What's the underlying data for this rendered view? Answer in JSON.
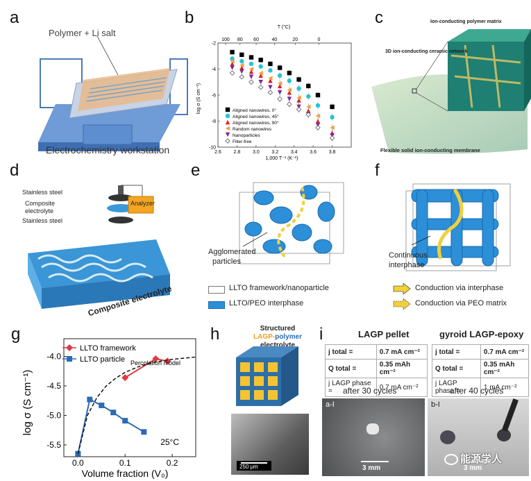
{
  "panels": {
    "a": "a",
    "b": "b",
    "c": "c",
    "d": "d",
    "e": "e",
    "f": "f",
    "g": "g",
    "h": "h",
    "i": "i"
  },
  "panel_a": {
    "polymer_label": "Polymer + Li salt",
    "workstation_label": "Electrochemistry workstation"
  },
  "panel_b": {
    "top_axis_label": "T (°C)",
    "top_ticks": [
      "100",
      "80",
      "60",
      "40",
      "20",
      "0"
    ],
    "ylabel": "log σ (S cm⁻¹)",
    "xlabel": "1,000 T⁻¹ (K⁻¹)",
    "yticks": [
      "-2",
      "-4",
      "-6",
      "-8",
      "-10"
    ],
    "xticks": [
      "2.6",
      "2.8",
      "3.0",
      "3.2",
      "3.4",
      "3.6",
      "3.8"
    ],
    "legend": [
      "Aligned nanowires, 0°",
      "Aligned nanowires, 45°",
      "Aligned nanowires, 90°",
      "Random nanowires",
      "Nanoparticles",
      "Filler-free"
    ]
  },
  "panel_c": {
    "matrix_label": "Ion-conducting polymer matrix",
    "network_label": "3D ion-conducting ceramic network",
    "membrane_label": "Flexible solid ion-conducting membrane"
  },
  "panel_d": {
    "steel_top": "Stainless steel",
    "composite": "Composite",
    "electrolyte": "electrolyte",
    "steel_bottom": "Stainless steel",
    "analyzer": "Analyzer",
    "caption": "Composite electrolyte"
  },
  "panel_e": {
    "label1": "Agglomerated",
    "label2": "particles"
  },
  "panel_f": {
    "label1": "Continuous",
    "label2": "interphase"
  },
  "legend_ef": {
    "framework": "LLTO framework/nanoparticle",
    "interphase": "LLTO/PEO interphase",
    "via_interphase": "Conduction via interphase",
    "via_peo": "Conduction via PEO matrix"
  },
  "panel_g": {
    "ylabel": "log σ (S cm⁻¹)",
    "xlabel": "Volume fraction (V₀)",
    "legend_framework": "LLTO framework",
    "legend_particle": "LLTO particle",
    "percolation": "Percolation model",
    "temp": "25°C",
    "yticks": [
      "-4.0",
      "-4.5",
      "-5.0",
      "-5.5"
    ],
    "xticks": [
      "0.0",
      "0.1",
      "0.2"
    ]
  },
  "panel_h": {
    "title_line1": "Structured",
    "title_lagp": "LAGP-",
    "title_polymer": "polymer",
    "title_rest": " electrolyte",
    "scale": "250 μm"
  },
  "panel_i": {
    "left_title": "LAGP pellet",
    "right_title": "gyroid LAGP-epoxy",
    "row_labels": [
      "j total =",
      "Q total =",
      "j LAGP phase ="
    ],
    "left_values": [
      "0.7 mA cm⁻²",
      "0.35 mAh cm⁻²",
      "0.7 mA cm⁻²"
    ],
    "right_values": [
      "0.7 mA cm⁻²",
      "0.35 mAh cm⁻²",
      "1 mA cm⁻²"
    ],
    "left_cycles": "after 30 cycles",
    "right_cycles": "after 40 cycles",
    "left_photo": "a-I",
    "right_photo": "b-I",
    "scale": "3 mm"
  },
  "watermark": "能源学人",
  "chart_data": [
    {
      "type": "scatter",
      "title": "",
      "xlabel": "1,000 T⁻¹ (K⁻¹)",
      "ylabel": "log σ (S cm⁻¹)",
      "xlim": [
        2.6,
        4.0
      ],
      "ylim": [
        -10,
        -2
      ],
      "x": [
        2.75,
        2.85,
        2.95,
        3.05,
        3.15,
        3.25,
        3.35,
        3.45,
        3.55,
        3.65,
        3.8
      ],
      "series": [
        {
          "name": "Aligned nanowires, 0°",
          "color": "#000000",
          "values": [
            -2.7,
            -2.9,
            -3.1,
            -3.3,
            -3.6,
            -3.9,
            -4.3,
            -4.8,
            -5.3,
            -6.0,
            -6.9
          ]
        },
        {
          "name": "Aligned nanowires, 45°",
          "color": "#22c5d6",
          "values": [
            -3.2,
            -3.4,
            -3.6,
            -3.8,
            -4.1,
            -4.5,
            -4.9,
            -5.5,
            -6.1,
            -6.8,
            -7.7
          ]
        },
        {
          "name": "Aligned nanowires, 90°",
          "color": "#e02020",
          "values": [
            -3.6,
            -3.9,
            -4.2,
            -4.5,
            -4.9,
            -5.3,
            -5.8,
            -6.4,
            -7.2,
            -8.0,
            -8.9
          ]
        },
        {
          "name": "Random nanowires",
          "color": "#f2a23a",
          "values": [
            -3.4,
            -3.7,
            -4.0,
            -4.3,
            -4.7,
            -5.1,
            -5.6,
            -6.2,
            -6.9,
            -7.6,
            -8.5
          ]
        },
        {
          "name": "Nanoparticles",
          "color": "#7a2a9a",
          "values": [
            -3.9,
            -4.2,
            -4.6,
            -5.0,
            -5.4,
            -5.8,
            -6.3,
            -6.9,
            -7.5,
            -8.3,
            -9.1
          ]
        },
        {
          "name": "Filler-free",
          "color": "#555555",
          "values": [
            -4.3,
            -4.6,
            -5.0,
            -5.4,
            -5.8,
            -6.3,
            -6.7,
            -7.1,
            -7.5,
            -8.5,
            -9.3
          ]
        }
      ]
    },
    {
      "type": "line",
      "title": "",
      "xlabel": "Volume fraction (V₀)",
      "ylabel": "log σ (S cm⁻¹)",
      "xlim": [
        -0.03,
        0.25
      ],
      "ylim": [
        -5.7,
        -3.7
      ],
      "series": [
        {
          "name": "LLTO framework",
          "color": "#e0393e",
          "marker": "diamond",
          "x": [
            0.1,
            0.165,
            0.19
          ],
          "values": [
            -4.36,
            -4.04,
            -4.08
          ]
        },
        {
          "name": "LLTO particle",
          "color": "#2a6bb5",
          "marker": "square",
          "x": [
            0.0,
            0.025,
            0.05,
            0.075,
            0.1,
            0.14
          ],
          "values": [
            -5.65,
            -4.73,
            -4.83,
            -4.95,
            -5.09,
            -5.28
          ]
        },
        {
          "name": "Percolation model",
          "color": "#111111",
          "dashed": true,
          "x": [
            0.0,
            0.02,
            0.04,
            0.06,
            0.08,
            0.1,
            0.13,
            0.16,
            0.2,
            0.25
          ],
          "values": [
            -5.65,
            -5.0,
            -4.7,
            -4.5,
            -4.37,
            -4.27,
            -4.17,
            -4.1,
            -4.05,
            -4.01
          ]
        }
      ]
    }
  ]
}
